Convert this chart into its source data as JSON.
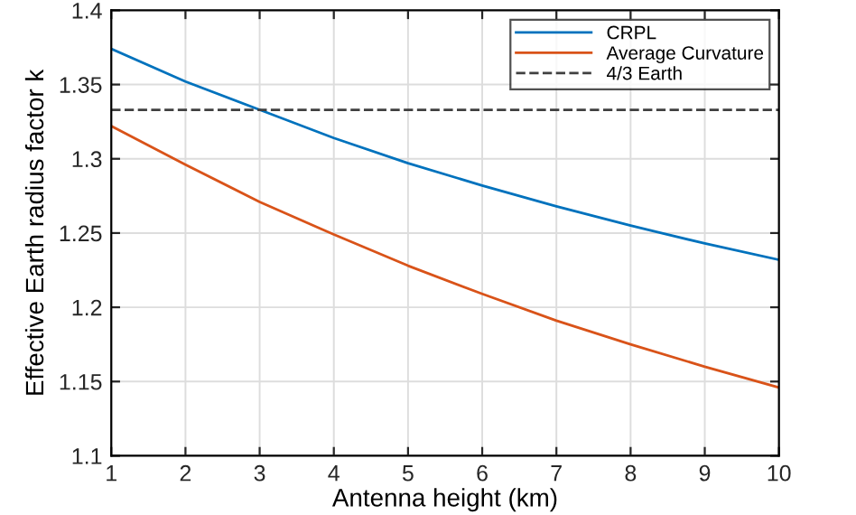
{
  "chart_data": {
    "type": "line",
    "xlabel": "Antenna height (km)",
    "ylabel": "Effective Earth radius factor k",
    "x": [
      1,
      2,
      3,
      4,
      5,
      6,
      7,
      8,
      9,
      10
    ],
    "series": [
      {
        "name": "CRPL",
        "color": "#0072bd",
        "values": [
          1.374,
          1.352,
          1.333,
          1.314,
          1.297,
          1.282,
          1.268,
          1.255,
          1.243,
          1.232
        ]
      },
      {
        "name": "Average Curvature",
        "color": "#d95319",
        "values": [
          1.322,
          1.296,
          1.271,
          1.249,
          1.228,
          1.209,
          1.191,
          1.175,
          1.16,
          1.146
        ]
      },
      {
        "name": "4/3 Earth",
        "color": "#404040",
        "line_style": "dashed",
        "values": [
          1.333,
          1.333,
          1.333,
          1.333,
          1.333,
          1.333,
          1.333,
          1.333,
          1.333,
          1.333
        ]
      }
    ],
    "xlim": [
      1,
      10
    ],
    "ylim": [
      1.1,
      1.4
    ],
    "xticks": [
      1,
      2,
      3,
      4,
      5,
      6,
      7,
      8,
      9,
      10
    ],
    "yticks": [
      1.1,
      1.15,
      1.2,
      1.25,
      1.3,
      1.35,
      1.4
    ],
    "grid": true,
    "legend": "top right",
    "marker": "none",
    "line_style": "solid"
  }
}
